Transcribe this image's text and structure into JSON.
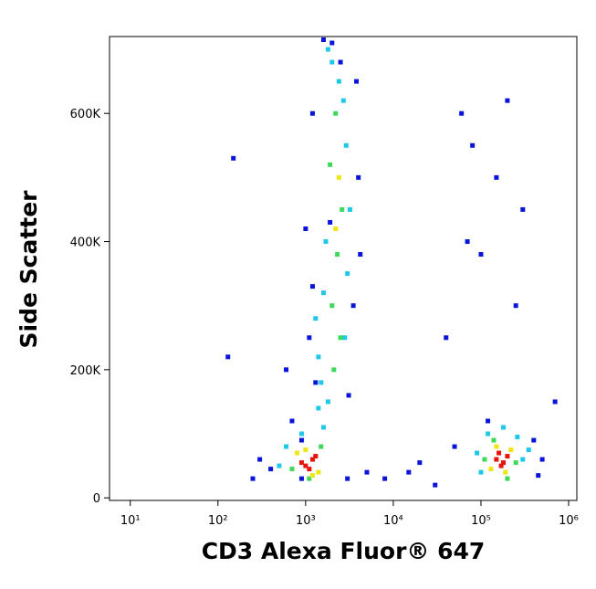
{
  "chart_data": {
    "type": "scatter",
    "xlabel": "CD3 Alexa Fluor® 647",
    "ylabel": "Side Scatter",
    "xscale": "log",
    "xlim": [
      5.8,
      1240000
    ],
    "xticks": [
      {
        "value": 10,
        "label": "10¹"
      },
      {
        "value": 100,
        "label": "10²"
      },
      {
        "value": 1000,
        "label": "10³"
      },
      {
        "value": 10000,
        "label": "10⁴"
      },
      {
        "value": 100000,
        "label": "10⁵"
      },
      {
        "value": 1000000,
        "label": "10⁶"
      }
    ],
    "ylim": [
      -4000,
      720000
    ],
    "yticks": [
      0,
      {
        "value": 200000,
        "label": "200K"
      },
      {
        "value": 400000,
        "label": "400K"
      },
      {
        "value": 600000,
        "label": "600K"
      }
    ],
    "series": [
      {
        "color": "#0a14d8",
        "x": [
          300,
          400,
          250,
          700,
          1100,
          1900,
          4000,
          3500,
          1200,
          1000,
          3800,
          4200,
          2000,
          1600,
          1300,
          3100,
          600,
          900,
          150,
          130,
          5000,
          8000,
          15000,
          20000,
          30000,
          40000,
          60000,
          70000,
          80000,
          400000,
          500000,
          450000,
          50000,
          120000,
          150000,
          200000,
          250000,
          300000,
          100000,
          700000,
          900,
          3000,
          2500,
          1200
        ],
        "y": [
          60000,
          45000,
          30000,
          120000,
          250000,
          430000,
          500000,
          300000,
          600000,
          420000,
          650000,
          380000,
          710000,
          715000,
          180000,
          160000,
          200000,
          90000,
          530000,
          220000,
          40000,
          30000,
          40000,
          55000,
          20000,
          250000,
          600000,
          400000,
          550000,
          90000,
          60000,
          35000,
          80000,
          120000,
          500000,
          620000,
          300000,
          450000,
          380000,
          150000,
          30000,
          30000,
          680000,
          330000
        ]
      },
      {
        "color": "#1ec8e6",
        "x": [
          600,
          1600,
          1800,
          2800,
          3000,
          1700,
          2400,
          2900,
          1500,
          1400,
          1300,
          1600,
          2700,
          2000,
          1800,
          3200,
          900,
          500,
          1400,
          90000,
          300000,
          120000,
          260000,
          100000,
          350000,
          180000
        ],
        "y": [
          80000,
          110000,
          150000,
          250000,
          350000,
          400000,
          650000,
          550000,
          180000,
          220000,
          280000,
          320000,
          620000,
          680000,
          700000,
          450000,
          100000,
          50000,
          140000,
          70000,
          60000,
          100000,
          95000,
          40000,
          75000,
          110000
        ]
      },
      {
        "color": "#3fd85a",
        "x": [
          700,
          1500,
          1100,
          2000,
          2300,
          2600,
          1900,
          2200,
          2500,
          2100,
          110000,
          250000,
          140000,
          200000
        ],
        "y": [
          45000,
          80000,
          30000,
          300000,
          380000,
          450000,
          520000,
          600000,
          250000,
          200000,
          60000,
          55000,
          90000,
          30000
        ]
      },
      {
        "color": "#f0e614",
        "x": [
          800,
          1400,
          1000,
          1200,
          2200,
          2400,
          130000,
          220000,
          150000,
          190000
        ],
        "y": [
          70000,
          40000,
          75000,
          35000,
          420000,
          500000,
          45000,
          75000,
          80000,
          40000
        ]
      },
      {
        "color": "#e6140a",
        "x": [
          1000,
          1200,
          1100,
          900,
          1300,
          150000,
          180000,
          200000,
          170000,
          160000
        ],
        "y": [
          50000,
          60000,
          45000,
          55000,
          65000,
          60000,
          55000,
          65000,
          50000,
          70000
        ]
      }
    ]
  }
}
